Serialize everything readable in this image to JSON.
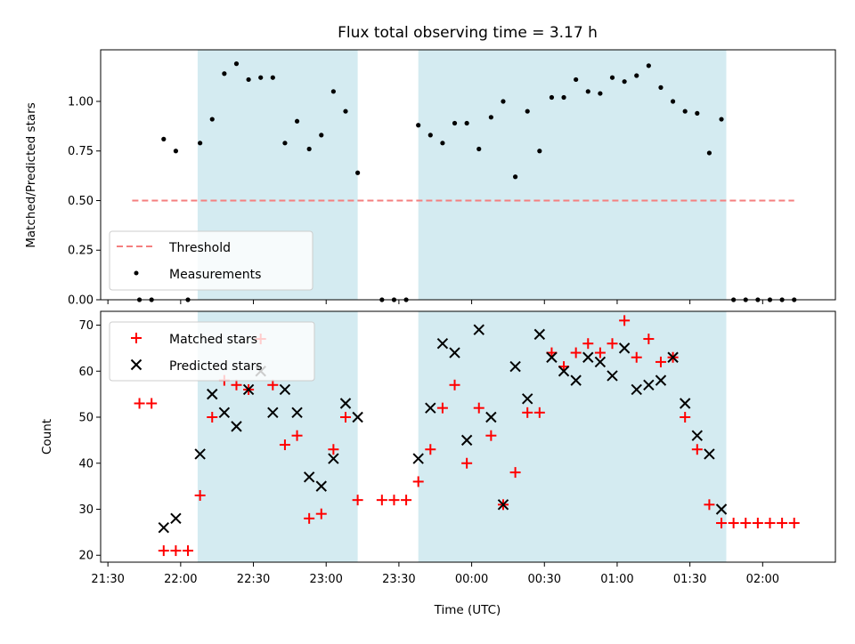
{
  "chart_data": [
    {
      "type": "scatter",
      "title": "Flux total observing time = 3.17 h",
      "xlabel": "",
      "ylabel": "Matched/Predicted stars",
      "x_range": [
        "21:27",
        "02:30"
      ],
      "ylim": [
        0,
        1.26
      ],
      "y_ticks": [
        "0.00",
        "0.25",
        "0.50",
        "0.75",
        "1.00"
      ],
      "shaded_intervals": [
        [
          "22:07",
          "23:13"
        ],
        [
          "23:38",
          "01:45"
        ]
      ],
      "shade_color": "#d4ebf1",
      "legend_position": "lower left",
      "series": [
        {
          "name": "Threshold",
          "style": "dashed-line",
          "color": "#f47f7f",
          "x": [
            "21:40",
            "02:13"
          ],
          "y": [
            0.5,
            0.5
          ]
        },
        {
          "name": "Measurements",
          "style": "dot",
          "color": "#000000",
          "x": [
            "21:43",
            "21:48",
            "21:53",
            "21:58",
            "22:03",
            "22:08",
            "22:13",
            "22:18",
            "22:23",
            "22:28",
            "22:33",
            "22:38",
            "22:43",
            "22:48",
            "22:53",
            "22:58",
            "23:03",
            "23:08",
            "23:13",
            "23:23",
            "23:28",
            "23:33",
            "23:38",
            "23:43",
            "23:48",
            "23:53",
            "23:58",
            "00:03",
            "00:08",
            "00:13",
            "00:18",
            "00:23",
            "00:28",
            "00:33",
            "00:38",
            "00:43",
            "00:48",
            "00:53",
            "00:58",
            "01:03",
            "01:08",
            "01:13",
            "01:18",
            "01:23",
            "01:28",
            "01:33",
            "01:38",
            "01:43",
            "01:48",
            "01:53",
            "01:58",
            "02:03",
            "02:08",
            "02:13"
          ],
          "y": [
            0.0,
            0.0,
            0.81,
            0.75,
            0.0,
            0.79,
            0.91,
            1.14,
            1.19,
            1.11,
            1.12,
            1.12,
            0.79,
            0.9,
            0.76,
            0.83,
            1.05,
            0.95,
            0.64,
            0.0,
            0.0,
            0.0,
            0.88,
            0.83,
            0.79,
            0.89,
            0.89,
            0.76,
            0.92,
            1.0,
            0.62,
            0.95,
            0.75,
            1.02,
            1.02,
            1.11,
            1.05,
            1.04,
            1.12,
            1.1,
            1.13,
            1.18,
            1.07,
            1.0,
            0.95,
            0.94,
            0.74,
            0.91,
            0.0,
            0.0,
            0.0,
            0.0,
            0.0,
            0.0
          ]
        }
      ]
    },
    {
      "type": "scatter",
      "title": "",
      "xlabel": "Time (UTC)",
      "ylabel": "Count",
      "x_range": [
        "21:27",
        "02:30"
      ],
      "ylim": [
        18.5,
        73
      ],
      "y_ticks": [
        "20",
        "30",
        "40",
        "50",
        "60",
        "70"
      ],
      "x_ticks": [
        "21:30",
        "22:00",
        "22:30",
        "23:00",
        "23:30",
        "00:00",
        "00:30",
        "01:00",
        "01:30",
        "02:00"
      ],
      "shaded_intervals": [
        [
          "22:07",
          "23:13"
        ],
        [
          "23:38",
          "01:45"
        ]
      ],
      "shade_color": "#d4ebf1",
      "legend_position": "upper left",
      "series": [
        {
          "name": "Matched stars",
          "style": "plus",
          "color": "#ff0000",
          "x": [
            "21:43",
            "21:48",
            "21:53",
            "21:58",
            "22:03",
            "22:08",
            "22:13",
            "22:18",
            "22:23",
            "22:28",
            "22:33",
            "22:38",
            "22:43",
            "22:48",
            "22:53",
            "22:58",
            "23:03",
            "23:08",
            "23:13",
            "23:23",
            "23:28",
            "23:33",
            "23:38",
            "23:43",
            "23:48",
            "23:53",
            "23:58",
            "00:03",
            "00:08",
            "00:13",
            "00:18",
            "00:23",
            "00:28",
            "00:33",
            "00:38",
            "00:43",
            "00:48",
            "00:53",
            "00:58",
            "01:03",
            "01:08",
            "01:13",
            "01:18",
            "01:23",
            "01:28",
            "01:33",
            "01:38",
            "01:43",
            "01:48",
            "01:53",
            "01:58",
            "02:03",
            "02:08",
            "02:13"
          ],
          "y": [
            53,
            53,
            21,
            21,
            21,
            33,
            50,
            58,
            57,
            56,
            67,
            57,
            44,
            46,
            28,
            29,
            43,
            50,
            32,
            32,
            32,
            32,
            36,
            43,
            52,
            57,
            40,
            52,
            46,
            31,
            38,
            51,
            51,
            64,
            61,
            64,
            66,
            64,
            66,
            71,
            63,
            67,
            62,
            63,
            50,
            43,
            31,
            27,
            27,
            27,
            27,
            27,
            27,
            27
          ]
        },
        {
          "name": "Predicted stars",
          "style": "x",
          "color": "#000000",
          "x": [
            "21:53",
            "21:58",
            "22:08",
            "22:13",
            "22:18",
            "22:23",
            "22:28",
            "22:33",
            "22:38",
            "22:43",
            "22:48",
            "22:53",
            "22:58",
            "23:03",
            "23:08",
            "23:13",
            "23:38",
            "23:43",
            "23:48",
            "23:53",
            "23:58",
            "00:03",
            "00:08",
            "00:13",
            "00:18",
            "00:23",
            "00:28",
            "00:33",
            "00:38",
            "00:43",
            "00:48",
            "00:53",
            "00:58",
            "01:03",
            "01:08",
            "01:13",
            "01:18",
            "01:23",
            "01:28",
            "01:33",
            "01:38",
            "01:43"
          ],
          "y": [
            26,
            28,
            42,
            55,
            51,
            48,
            56,
            60,
            51,
            56,
            51,
            37,
            35,
            41,
            53,
            50,
            41,
            52,
            66,
            64,
            45,
            69,
            50,
            31,
            61,
            54,
            68,
            63,
            60,
            58,
            63,
            62,
            59,
            65,
            56,
            57,
            58,
            63,
            53,
            46,
            42,
            30
          ]
        }
      ]
    }
  ]
}
